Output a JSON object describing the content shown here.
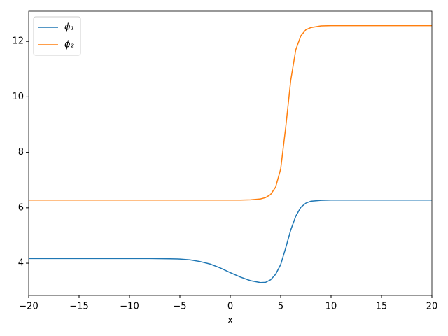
{
  "chart_data": {
    "type": "line",
    "xlabel": "x",
    "x": [
      -20,
      -15,
      -10,
      -8,
      -6,
      -5,
      -4,
      -3,
      -2,
      -1,
      0,
      1,
      2,
      3,
      3.5,
      4,
      4.5,
      5,
      5.5,
      6,
      6.5,
      7,
      7.5,
      8,
      9,
      10,
      12,
      15,
      20
    ],
    "series": [
      {
        "name": "ϕ₁",
        "color": "#1f77b4",
        "values": [
          4.17,
          4.17,
          4.17,
          4.17,
          4.16,
          4.15,
          4.12,
          4.06,
          3.97,
          3.83,
          3.66,
          3.5,
          3.37,
          3.3,
          3.31,
          3.4,
          3.6,
          3.95,
          4.55,
          5.2,
          5.7,
          6.02,
          6.17,
          6.24,
          6.27,
          6.28,
          6.28,
          6.28,
          6.28
        ]
      },
      {
        "name": "ϕ₂",
        "color": "#ff7f0e",
        "values": [
          6.28,
          6.28,
          6.28,
          6.28,
          6.28,
          6.28,
          6.28,
          6.28,
          6.28,
          6.28,
          6.28,
          6.28,
          6.29,
          6.32,
          6.37,
          6.48,
          6.75,
          7.4,
          8.9,
          10.6,
          11.7,
          12.2,
          12.42,
          12.5,
          12.56,
          12.57,
          12.57,
          12.57,
          12.57
        ]
      }
    ],
    "xlim": [
      -20,
      20
    ],
    "xticks": [
      {
        "value": -20,
        "label": "−20"
      },
      {
        "value": -15,
        "label": "−15"
      },
      {
        "value": -10,
        "label": "−10"
      },
      {
        "value": -5,
        "label": "−5"
      },
      0,
      5,
      10,
      15,
      20
    ],
    "ylim": [
      2.84,
      13.09
    ],
    "yticks": [
      4,
      6,
      8,
      10,
      12
    ],
    "legend": "upper left"
  }
}
